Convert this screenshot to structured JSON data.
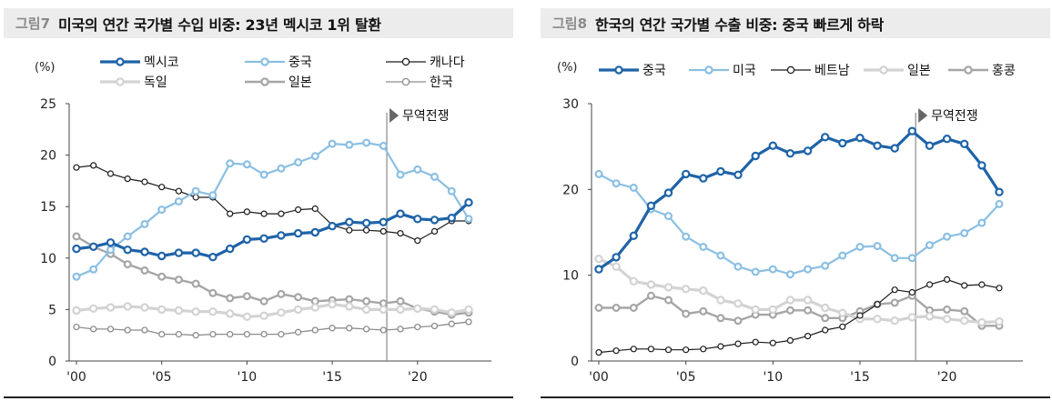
{
  "charts": [
    {
      "fig_label": "그림7",
      "title": "미국의 연간 국가별 수입 비중: 23년 멕시코 1위 탈환"
    },
    {
      "fig_label": "그림8",
      "title": "한국의 연간 국가별 수출 비중: 중국 빠르게 하락"
    }
  ],
  "chart_data": [
    {
      "type": "line",
      "title": "미국의 연간 국가별 수입 비중: 23년 멕시코 1위 탈환",
      "ylabel": "(%)",
      "ylim": [
        0,
        25
      ],
      "yticks": [
        0,
        5,
        10,
        15,
        20,
        25
      ],
      "xlim": [
        2000,
        2023
      ],
      "xticks": [
        2000,
        2005,
        2010,
        2015,
        2020
      ],
      "xtick_labels": [
        "'00",
        "'05",
        "'10",
        "'15",
        "'20"
      ],
      "x": [
        2000,
        2001,
        2002,
        2003,
        2004,
        2005,
        2006,
        2007,
        2008,
        2009,
        2010,
        2011,
        2012,
        2013,
        2014,
        2015,
        2016,
        2017,
        2018,
        2019,
        2020,
        2021,
        2022,
        2023
      ],
      "annotation": {
        "text": "무역전쟁",
        "x": 2018.2
      },
      "legend_position": "top",
      "grid": false,
      "series": [
        {
          "name": "멕시코",
          "color": "#1f63a8",
          "width": 3.2,
          "marker": "hollow-circle",
          "values": [
            10.9,
            11.1,
            11.5,
            10.8,
            10.6,
            10.2,
            10.5,
            10.5,
            10.1,
            10.9,
            11.8,
            11.9,
            12.2,
            12.4,
            12.5,
            13.1,
            13.5,
            13.4,
            13.5,
            14.3,
            13.8,
            13.7,
            13.9,
            15.4
          ]
        },
        {
          "name": "중국",
          "color": "#8bbfe3",
          "width": 2.2,
          "marker": "hollow-circle",
          "values": [
            8.2,
            8.9,
            10.8,
            12.1,
            13.3,
            14.7,
            15.5,
            16.5,
            16.1,
            19.2,
            19.1,
            18.1,
            18.7,
            19.3,
            19.9,
            21.1,
            21.0,
            21.2,
            20.9,
            18.1,
            18.6,
            17.9,
            16.5,
            13.8
          ]
        },
        {
          "name": "캐나다",
          "color": "#1a1a1a",
          "width": 1.2,
          "marker": "hollow-circle",
          "values": [
            18.8,
            19.0,
            18.2,
            17.7,
            17.4,
            16.9,
            16.5,
            15.9,
            15.9,
            14.3,
            14.5,
            14.3,
            14.3,
            14.7,
            14.8,
            13.2,
            12.7,
            12.7,
            12.6,
            12.4,
            11.7,
            12.6,
            13.6,
            13.6
          ]
        },
        {
          "name": "독일",
          "color": "#d3d3d3",
          "width": 3.2,
          "marker": "hollow-circle",
          "values": [
            4.9,
            5.1,
            5.2,
            5.3,
            5.2,
            5.0,
            4.9,
            4.8,
            4.8,
            4.6,
            4.3,
            4.4,
            4.7,
            5.0,
            5.2,
            5.5,
            5.3,
            5.0,
            5.0,
            5.0,
            5.1,
            5.0,
            4.7,
            5.0
          ]
        },
        {
          "name": "일본",
          "color": "#a6a6a6",
          "width": 2.4,
          "marker": "hollow-circle",
          "values": [
            12.1,
            11.1,
            10.4,
            9.4,
            8.8,
            8.2,
            7.9,
            7.5,
            6.6,
            6.1,
            6.3,
            5.8,
            6.5,
            6.2,
            5.8,
            5.9,
            6.0,
            5.8,
            5.6,
            5.8,
            5.1,
            4.8,
            4.5,
            4.7
          ]
        },
        {
          "name": "한국",
          "color": "#8c8c8c",
          "width": 1.3,
          "marker": "hollow-circle",
          "values": [
            3.3,
            3.1,
            3.1,
            3.0,
            3.0,
            2.6,
            2.6,
            2.5,
            2.6,
            2.6,
            2.6,
            2.6,
            2.6,
            2.8,
            3.0,
            3.2,
            3.2,
            3.1,
            3.0,
            3.1,
            3.3,
            3.4,
            3.6,
            3.8
          ]
        }
      ]
    },
    {
      "type": "line",
      "title": "한국의 연간 국가별 수출 비중: 중국 빠르게 하락",
      "ylabel": "(%)",
      "ylim": [
        0,
        30
      ],
      "yticks": [
        0,
        10,
        20,
        30
      ],
      "xlim": [
        2000,
        2023
      ],
      "xticks": [
        2000,
        2005,
        2010,
        2015,
        2020
      ],
      "xtick_labels": [
        "'00",
        "'05",
        "'10",
        "'15",
        "'20"
      ],
      "x": [
        2000,
        2001,
        2002,
        2003,
        2004,
        2005,
        2006,
        2007,
        2008,
        2009,
        2010,
        2011,
        2012,
        2013,
        2014,
        2015,
        2016,
        2017,
        2018,
        2019,
        2020,
        2021,
        2022,
        2023
      ],
      "annotation": {
        "text": "무역전쟁",
        "x": 2018.2
      },
      "legend_position": "top",
      "grid": false,
      "series": [
        {
          "name": "중국",
          "color": "#1f63a8",
          "width": 3.2,
          "marker": "hollow-circle",
          "values": [
            10.7,
            12.1,
            14.6,
            18.1,
            19.6,
            21.8,
            21.3,
            22.1,
            21.7,
            23.9,
            25.1,
            24.2,
            24.5,
            26.1,
            25.4,
            26.0,
            25.1,
            24.8,
            26.8,
            25.1,
            25.9,
            25.3,
            22.8,
            19.7
          ]
        },
        {
          "name": "미국",
          "color": "#8bbfe3",
          "width": 2.2,
          "marker": "hollow-circle",
          "values": [
            21.8,
            20.7,
            20.2,
            17.7,
            16.9,
            14.5,
            13.3,
            12.3,
            11.0,
            10.4,
            10.7,
            10.1,
            10.7,
            11.1,
            12.3,
            13.3,
            13.4,
            12.0,
            12.0,
            13.5,
            14.5,
            14.9,
            16.1,
            18.3
          ]
        },
        {
          "name": "베트남",
          "color": "#1a1a1a",
          "width": 1.2,
          "marker": "hollow-circle",
          "values": [
            1.0,
            1.2,
            1.4,
            1.4,
            1.3,
            1.3,
            1.4,
            1.7,
            2.0,
            2.2,
            2.1,
            2.4,
            2.9,
            3.6,
            4.0,
            5.3,
            6.6,
            8.3,
            8.0,
            8.9,
            9.5,
            8.8,
            8.9,
            8.5
          ]
        },
        {
          "name": "일본",
          "color": "#d3d3d3",
          "width": 3.2,
          "marker": "hollow-circle",
          "values": [
            11.9,
            11.0,
            9.3,
            8.9,
            8.6,
            8.4,
            8.2,
            7.1,
            6.7,
            6.0,
            6.0,
            7.1,
            7.1,
            6.2,
            5.6,
            4.9,
            4.9,
            4.7,
            5.1,
            5.2,
            4.9,
            4.7,
            4.5,
            4.6
          ]
        },
        {
          "name": "홍콩",
          "color": "#a6a6a6",
          "width": 2.4,
          "marker": "hollow-circle",
          "values": [
            6.2,
            6.2,
            6.2,
            7.6,
            7.1,
            5.5,
            5.8,
            5.0,
            4.7,
            5.4,
            5.4,
            5.9,
            5.9,
            5.0,
            5.0,
            5.8,
            6.6,
            6.8,
            7.6,
            5.9,
            6.0,
            5.8,
            4.1,
            4.1
          ]
        }
      ]
    }
  ]
}
